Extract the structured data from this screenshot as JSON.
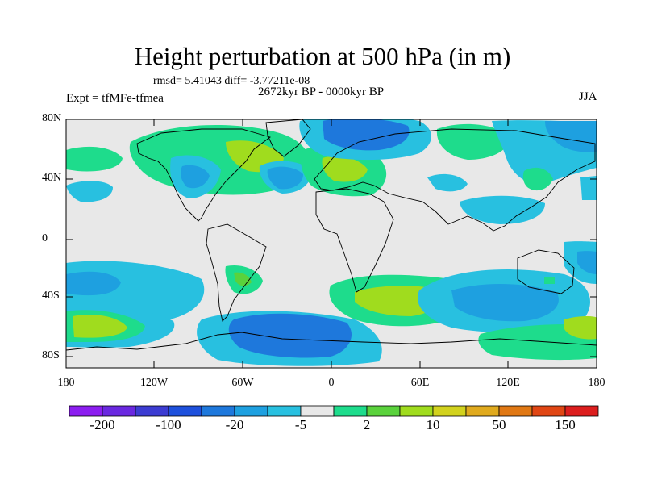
{
  "title": "Height perturbation at 500 hPa (in m)",
  "stats_line": "rmsd= 5.41043 diff= -3.77211e-08",
  "subtitle": "2672kyr BP - 0000kyr BP",
  "experiment_label": "Expt = tfMFe-tfmea",
  "season": "JJA",
  "lat_labels": [
    "80N",
    "40N",
    "0",
    "40S",
    "80S"
  ],
  "lon_labels": [
    "180",
    "120W",
    "60W",
    "0",
    "60E",
    "120E",
    "180"
  ],
  "colorbar": {
    "colors": [
      "#8c1ef0",
      "#6a28e0",
      "#3c3cd2",
      "#1e50dc",
      "#1e78dc",
      "#1ea0e0",
      "#28c0e0",
      "#e8e8e8",
      "#1edc8c",
      "#5ad23c",
      "#a0dc1e",
      "#d2d21e",
      "#e0aa1e",
      "#e07814",
      "#e04614",
      "#dc1e1e"
    ],
    "labels": [
      "-200",
      "-100",
      "-20",
      "-5",
      "2",
      "10",
      "50",
      "150"
    ]
  },
  "map": {
    "field_colors": {
      "background": "#e8e8e8",
      "pos_small": "#1edc8c",
      "pos_mid": "#5ad23c",
      "pos_large": "#a0dc1e",
      "neg_small": "#28c0e0",
      "neg_mid": "#1ea0e0",
      "neg_large": "#1e78dc",
      "neg_xlarge": "#1e50dc"
    }
  }
}
